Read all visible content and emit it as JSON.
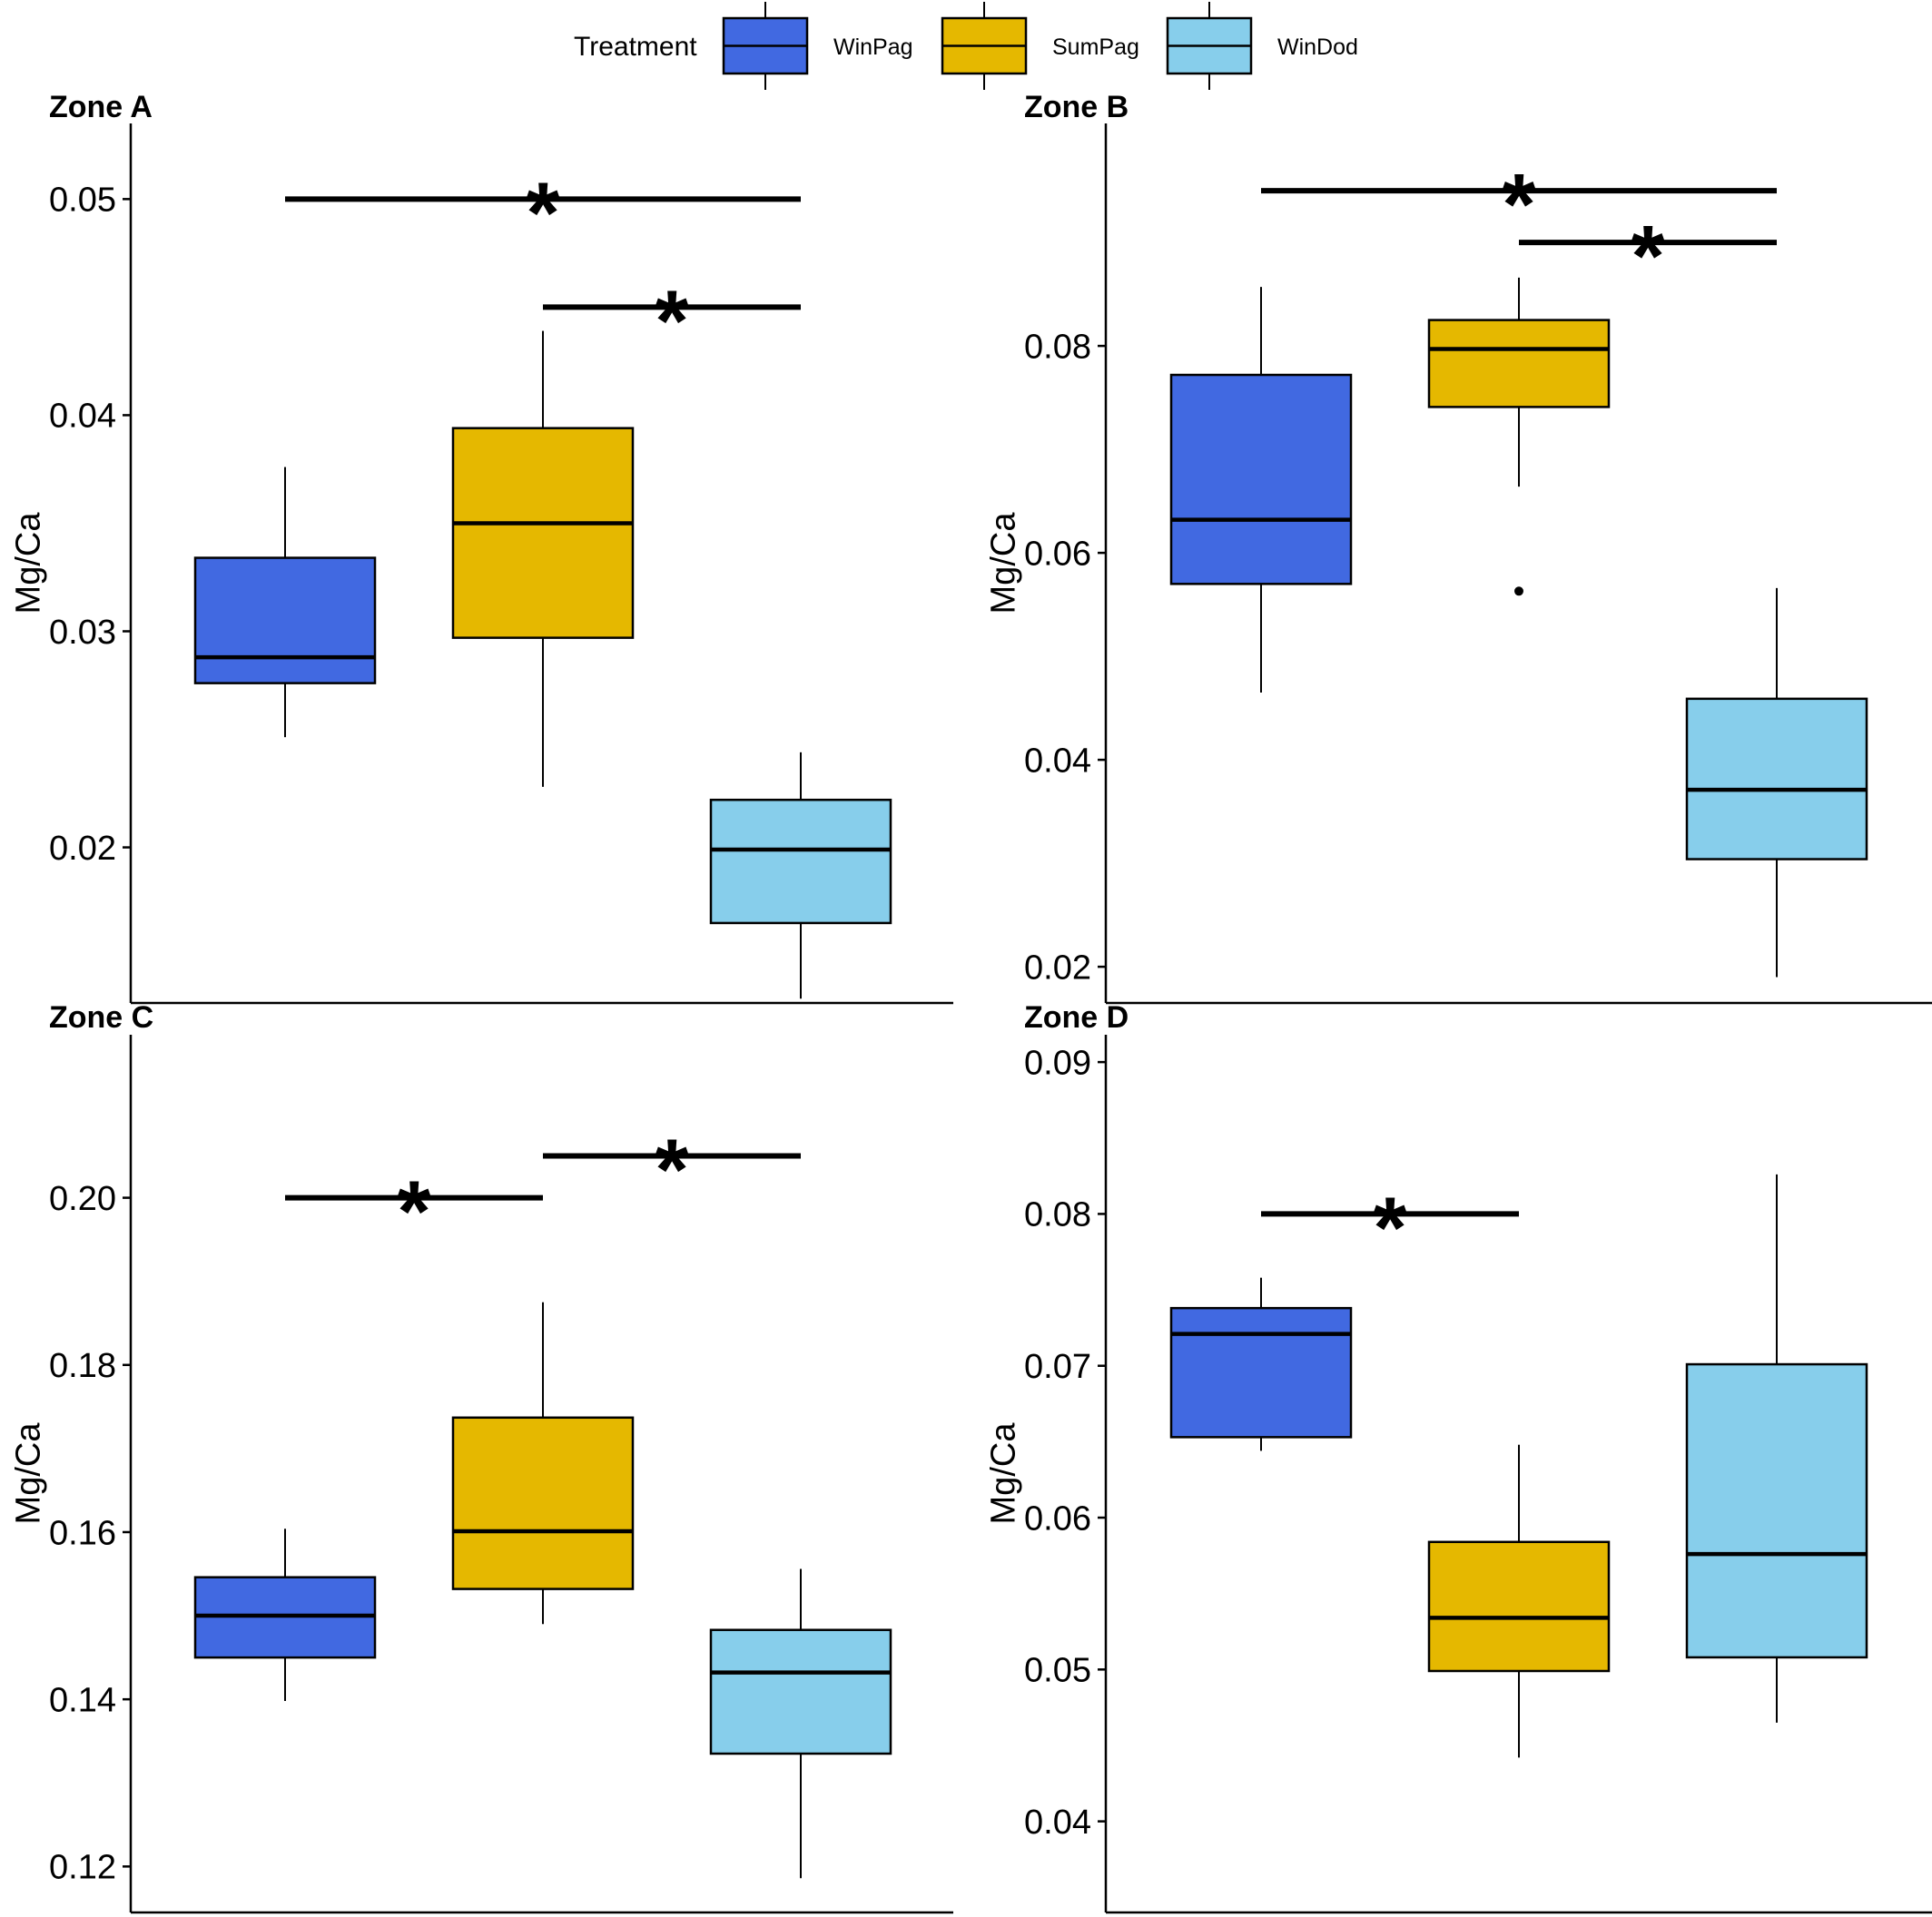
{
  "legend": {
    "title": "Treatment",
    "items": [
      {
        "label": "WinPag",
        "color": "#4169E1"
      },
      {
        "label": "SumPag",
        "color": "#E5B800"
      },
      {
        "label": "WinDod",
        "color": "#87CEEB"
      }
    ]
  },
  "chart_data": [
    {
      "type": "box",
      "title": "Zone A",
      "ylabel": "Mg/Ca",
      "categories": [
        "WinPag",
        "SumPag",
        "WinDod"
      ],
      "ylim": [
        0.0128,
        0.0535
      ],
      "yticks": [
        0.02,
        0.03,
        0.04,
        0.05
      ],
      "ytick_labels": [
        "0.02",
        "0.03",
        "0.04",
        "0.05"
      ],
      "boxes": [
        {
          "group": "WinPag",
          "whisker_low": 0.0251,
          "q1": 0.0276,
          "median": 0.0288,
          "q3": 0.0334,
          "whisker_high": 0.0376,
          "outliers": []
        },
        {
          "group": "SumPag",
          "whisker_low": 0.0228,
          "q1": 0.0297,
          "median": 0.035,
          "q3": 0.0394,
          "whisker_high": 0.0439,
          "outliers": []
        },
        {
          "group": "WinDod",
          "whisker_low": 0.013,
          "q1": 0.0165,
          "median": 0.0199,
          "q3": 0.0222,
          "whisker_high": 0.0244,
          "outliers": []
        }
      ],
      "significance": [
        {
          "from": "WinPag",
          "to": "WinDod",
          "y": 0.05,
          "label": "*"
        },
        {
          "from": "SumPag",
          "to": "WinDod",
          "y": 0.045,
          "label": "*"
        }
      ]
    },
    {
      "type": "box",
      "title": "Zone B",
      "ylabel": "Mg/Ca",
      "categories": [
        "WinPag",
        "SumPag",
        "WinDod"
      ],
      "ylim": [
        0.0165,
        0.1015
      ],
      "yticks": [
        0.02,
        0.04,
        0.06,
        0.08
      ],
      "ytick_labels": [
        "0.02",
        "0.04",
        "0.06",
        "0.08"
      ],
      "boxes": [
        {
          "group": "WinPag",
          "whisker_low": 0.0465,
          "q1": 0.057,
          "median": 0.0632,
          "q3": 0.0772,
          "whisker_high": 0.0857,
          "outliers": []
        },
        {
          "group": "SumPag",
          "whisker_low": 0.0664,
          "q1": 0.0741,
          "median": 0.0797,
          "q3": 0.0825,
          "whisker_high": 0.0866,
          "outliers": [
            0.0563
          ]
        },
        {
          "group": "WinDod",
          "whisker_low": 0.019,
          "q1": 0.0304,
          "median": 0.0371,
          "q3": 0.0459,
          "whisker_high": 0.0566,
          "outliers": []
        }
      ],
      "significance": [
        {
          "from": "WinPag",
          "to": "WinDod",
          "y": 0.095,
          "label": "*"
        },
        {
          "from": "SumPag",
          "to": "WinDod",
          "y": 0.09,
          "label": "*"
        }
      ]
    },
    {
      "type": "box",
      "title": "Zone C",
      "ylabel": "Mg/Ca",
      "categories": [
        "WinPag",
        "SumPag",
        "WinDod"
      ],
      "ylim": [
        0.1145,
        0.2195
      ],
      "yticks": [
        0.12,
        0.14,
        0.16,
        0.18,
        0.2
      ],
      "ytick_labels": [
        "0.12",
        "0.14",
        "0.16",
        "0.18",
        "0.20"
      ],
      "boxes": [
        {
          "group": "WinPag",
          "whisker_low": 0.1398,
          "q1": 0.145,
          "median": 0.15,
          "q3": 0.1546,
          "whisker_high": 0.1604,
          "outliers": []
        },
        {
          "group": "SumPag",
          "whisker_low": 0.149,
          "q1": 0.1532,
          "median": 0.1601,
          "q3": 0.1737,
          "whisker_high": 0.1875,
          "outliers": []
        },
        {
          "group": "WinDod",
          "whisker_low": 0.1186,
          "q1": 0.1335,
          "median": 0.1432,
          "q3": 0.1483,
          "whisker_high": 0.1556,
          "outliers": []
        }
      ],
      "significance": [
        {
          "from": "WinPag",
          "to": "SumPag",
          "y": 0.2,
          "label": "*"
        },
        {
          "from": "SumPag",
          "to": "WinDod",
          "y": 0.205,
          "label": "*"
        }
      ]
    },
    {
      "type": "box",
      "title": "Zone D",
      "ylabel": "Mg/Ca",
      "categories": [
        "WinPag",
        "SumPag",
        "WinDod"
      ],
      "ylim": [
        0.034,
        0.0918
      ],
      "yticks": [
        0.04,
        0.05,
        0.06,
        0.07,
        0.08,
        0.09
      ],
      "ytick_labels": [
        "0.04",
        "0.05",
        "0.06",
        "0.07",
        "0.08",
        "0.09"
      ],
      "boxes": [
        {
          "group": "WinPag",
          "whisker_low": 0.0644,
          "q1": 0.0653,
          "median": 0.0721,
          "q3": 0.0738,
          "whisker_high": 0.0758,
          "outliers": []
        },
        {
          "group": "SumPag",
          "whisker_low": 0.0442,
          "q1": 0.0499,
          "median": 0.0534,
          "q3": 0.0584,
          "whisker_high": 0.0648,
          "outliers": []
        },
        {
          "group": "WinDod",
          "whisker_low": 0.0465,
          "q1": 0.0508,
          "median": 0.0576,
          "q3": 0.0701,
          "whisker_high": 0.0826,
          "outliers": []
        }
      ],
      "significance": [
        {
          "from": "WinPag",
          "to": "SumPag",
          "y": 0.08,
          "label": "*"
        }
      ]
    }
  ]
}
